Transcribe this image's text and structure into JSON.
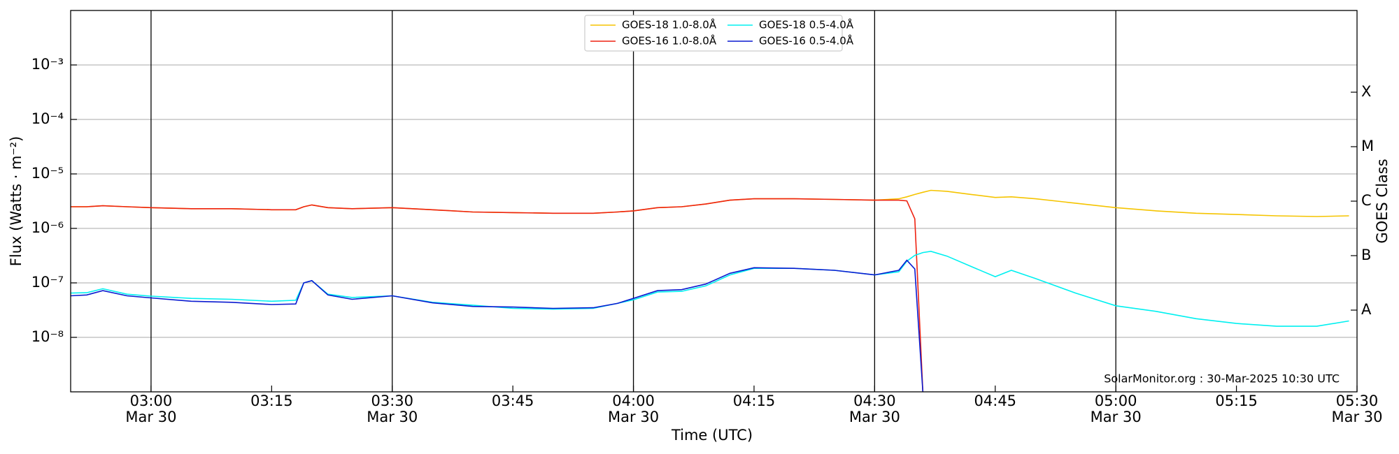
{
  "chart_data": {
    "type": "line",
    "xlabel": "Time (UTC)",
    "ylabel": "Flux (Watts · m⁻²)",
    "y2label": "GOES Class",
    "annotation": "SolarMonitor.org : 30-Mar-2025 10:30 UTC",
    "log_y": true,
    "grid": "y",
    "legend": "upper center",
    "x": [
      "02:50",
      "02:52",
      "02:54",
      "02:57",
      "03:00",
      "03:05",
      "03:10",
      "03:15",
      "03:18",
      "03:19",
      "03:20",
      "03:22",
      "03:25",
      "03:30",
      "03:35",
      "03:40",
      "03:45",
      "03:50",
      "03:55",
      "03:58",
      "04:00",
      "04:03",
      "04:06",
      "04:09",
      "04:12",
      "04:15",
      "04:20",
      "04:25",
      "04:30",
      "04:33",
      "04:34",
      "04:35",
      "04:36",
      "04:37",
      "04:39",
      "04:42",
      "04:45",
      "04:47",
      "04:50",
      "04:55",
      "05:00",
      "05:05",
      "05:10",
      "05:15",
      "05:20",
      "05:25",
      "05:29"
    ],
    "series": [
      {
        "name": "GOES-18 1.0-8.0Å",
        "color": "#f5c400",
        "values": [
          2.5e-06,
          2.5e-06,
          2.6e-06,
          2.5e-06,
          2.4e-06,
          2.3e-06,
          2.3e-06,
          2.2e-06,
          2.2e-06,
          2.5e-06,
          2.7e-06,
          2.4e-06,
          2.3e-06,
          2.4e-06,
          2.2e-06,
          2e-06,
          1.95e-06,
          1.9e-06,
          1.9e-06,
          2e-06,
          2.1e-06,
          2.4e-06,
          2.5e-06,
          2.8e-06,
          3.3e-06,
          3.5e-06,
          3.5e-06,
          3.4e-06,
          3.3e-06,
          3.5e-06,
          3.8e-06,
          4.2e-06,
          4.6e-06,
          5e-06,
          4.8e-06,
          4.2e-06,
          3.7e-06,
          3.8e-06,
          3.5e-06,
          2.9e-06,
          2.4e-06,
          2.1e-06,
          1.9e-06,
          1.8e-06,
          1.7e-06,
          1.65e-06,
          1.7e-06
        ]
      },
      {
        "name": "GOES-16 1.0-8.0Å",
        "color": "#ee2211",
        "values": [
          2.5e-06,
          2.5e-06,
          2.6e-06,
          2.5e-06,
          2.4e-06,
          2.3e-06,
          2.3e-06,
          2.2e-06,
          2.2e-06,
          2.5e-06,
          2.7e-06,
          2.4e-06,
          2.3e-06,
          2.4e-06,
          2.2e-06,
          2e-06,
          1.95e-06,
          1.9e-06,
          1.9e-06,
          2e-06,
          2.1e-06,
          2.4e-06,
          2.5e-06,
          2.8e-06,
          3.3e-06,
          3.5e-06,
          3.5e-06,
          3.4e-06,
          3.3e-06,
          3.3e-06,
          3.2e-06,
          1.5e-06,
          1e-09,
          null,
          null,
          null,
          null,
          null,
          null,
          null,
          null,
          null,
          null,
          null,
          null,
          null,
          null
        ]
      },
      {
        "name": "GOES-18 0.5-4.0Å",
        "color": "#00f0f0",
        "values": [
          6.5e-08,
          6.6e-08,
          7.8e-08,
          6.2e-08,
          5.7e-08,
          5.2e-08,
          5e-08,
          4.6e-08,
          4.8e-08,
          1e-07,
          1.1e-07,
          6.2e-08,
          5.4e-08,
          5.8e-08,
          4.4e-08,
          3.9e-08,
          3.4e-08,
          3.3e-08,
          3.4e-08,
          4.2e-08,
          4.9e-08,
          6.8e-08,
          7e-08,
          8.8e-08,
          1.4e-07,
          1.85e-07,
          1.85e-07,
          1.7e-07,
          1.4e-07,
          1.6e-07,
          2.5e-07,
          3.2e-07,
          3.6e-07,
          3.8e-07,
          3.1e-07,
          2e-07,
          1.3e-07,
          1.7e-07,
          1.2e-07,
          6.5e-08,
          3.8e-08,
          3e-08,
          2.2e-08,
          1.8e-08,
          1.6e-08,
          1.6e-08,
          2e-08
        ]
      },
      {
        "name": "GOES-16 0.5-4.0Å",
        "color": "#0a1ad0",
        "values": [
          5.8e-08,
          6e-08,
          7.2e-08,
          5.8e-08,
          5.3e-08,
          4.6e-08,
          4.4e-08,
          4e-08,
          4.1e-08,
          1e-07,
          1.1e-07,
          6e-08,
          5e-08,
          5.8e-08,
          4.3e-08,
          3.7e-08,
          3.6e-08,
          3.4e-08,
          3.5e-08,
          4.2e-08,
          5.2e-08,
          7.2e-08,
          7.5e-08,
          9.5e-08,
          1.5e-07,
          1.9e-07,
          1.85e-07,
          1.7e-07,
          1.4e-07,
          1.7e-07,
          2.6e-07,
          1.8e-07,
          1e-09,
          null,
          null,
          null,
          null,
          null,
          null,
          null,
          null,
          null,
          null,
          null,
          null,
          null,
          null
        ]
      }
    ],
    "xlim": [
      "02:50",
      "05:30"
    ],
    "xticks": [
      {
        "value": "03:00",
        "label": "03:00",
        "date": "Mar 30"
      },
      "03:15",
      {
        "value": "03:30",
        "label": "03:30",
        "date": "Mar 30"
      },
      "03:45",
      {
        "value": "04:00",
        "label": "04:00",
        "date": "Mar 30"
      },
      "04:15",
      {
        "value": "04:30",
        "label": "04:30",
        "date": "Mar 30"
      },
      "04:45",
      {
        "value": "05:00",
        "label": "05:00",
        "date": "Mar 30"
      },
      "05:15",
      {
        "value": "05:30",
        "label": "05:30",
        "date": "Mar 30"
      }
    ],
    "vlines": [
      "03:00",
      "03:30",
      "04:00",
      "04:30",
      "05:00"
    ],
    "ylim": [
      1e-09,
      0.01
    ],
    "yticks": [
      {
        "value": 1e-08,
        "label": "10⁻⁸"
      },
      {
        "value": 1e-07,
        "label": "10⁻⁷"
      },
      {
        "value": 1e-06,
        "label": "10⁻⁶"
      },
      {
        "value": 1e-05,
        "label": "10⁻⁵"
      },
      {
        "value": 0.0001,
        "label": "10⁻⁴"
      },
      {
        "value": 0.001,
        "label": "10⁻³"
      }
    ],
    "y2lim": [
      1e-09,
      0.01
    ],
    "y2ticks": [
      {
        "value": 3.162e-08,
        "label": "A"
      },
      {
        "value": 3.162e-07,
        "label": "B"
      },
      {
        "value": 3.162e-06,
        "label": "C"
      },
      {
        "value": 3.162e-05,
        "label": "M"
      },
      {
        "value": 0.0003162,
        "label": "X"
      }
    ]
  }
}
